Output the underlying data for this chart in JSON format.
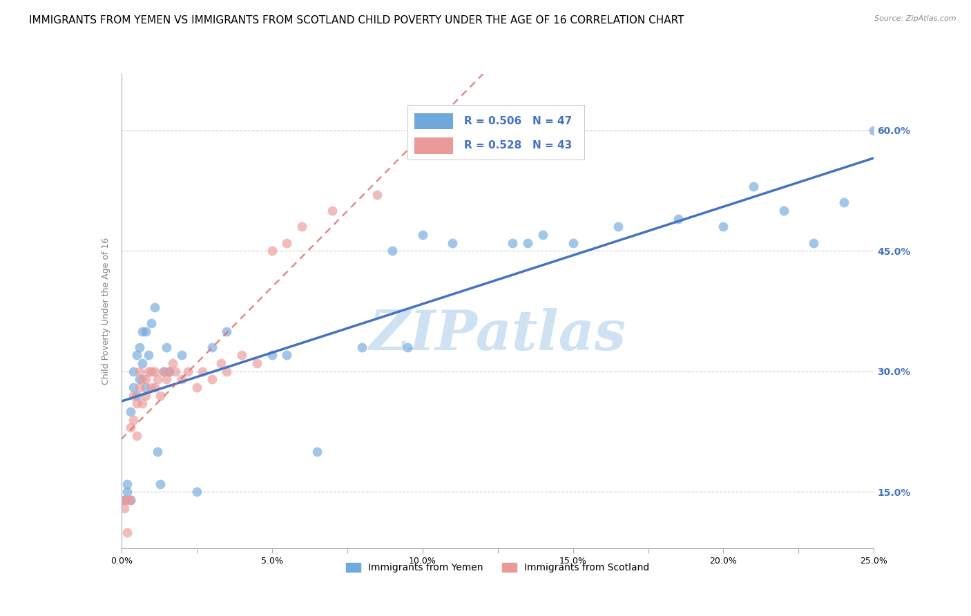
{
  "title": "IMMIGRANTS FROM YEMEN VS IMMIGRANTS FROM SCOTLAND CHILD POVERTY UNDER THE AGE OF 16 CORRELATION CHART",
  "source": "Source: ZipAtlas.com",
  "ylabel": "Child Poverty Under the Age of 16",
  "xlim": [
    0,
    0.25
  ],
  "ylim": [
    0.08,
    0.67
  ],
  "xticks": [
    0.0,
    0.025,
    0.05,
    0.075,
    0.1,
    0.125,
    0.15,
    0.175,
    0.2,
    0.225,
    0.25
  ],
  "yticks": [
    0.15,
    0.3,
    0.45,
    0.6
  ],
  "ytick_labels": [
    "15.0%",
    "30.0%",
    "45.0%",
    "60.0%"
  ],
  "xtick_labels": [
    "0.0%",
    "",
    "5.0%",
    "",
    "10.0%",
    "",
    "15.0%",
    "",
    "20.0%",
    "",
    "25.0%"
  ],
  "legend1_R": "0.506",
  "legend1_N": "47",
  "legend2_R": "0.528",
  "legend2_N": "43",
  "legend1_label": "Immigrants from Yemen",
  "legend2_label": "Immigrants from Scotland",
  "blue_color": "#6fa8dc",
  "pink_color": "#ea9999",
  "line_blue": "#4472c4",
  "line_pink": "#e06c6c",
  "watermark": "ZIPatlas",
  "watermark_color": "#cfe2f3",
  "grid_color": "#cccccc",
  "axis_color": "#aaaaaa",
  "right_ytick_color": "#4472c4",
  "title_fontsize": 11,
  "axis_label_fontsize": 9,
  "tick_fontsize": 9,
  "yemen_x": [
    0.001,
    0.002,
    0.002,
    0.003,
    0.003,
    0.004,
    0.004,
    0.005,
    0.005,
    0.006,
    0.006,
    0.007,
    0.007,
    0.008,
    0.008,
    0.009,
    0.01,
    0.011,
    0.012,
    0.013,
    0.014,
    0.015,
    0.016,
    0.02,
    0.025,
    0.03,
    0.035,
    0.05,
    0.055,
    0.065,
    0.08,
    0.09,
    0.095,
    0.1,
    0.11,
    0.13,
    0.135,
    0.14,
    0.15,
    0.165,
    0.185,
    0.2,
    0.21,
    0.22,
    0.23,
    0.24,
    0.25
  ],
  "yemen_y": [
    0.14,
    0.15,
    0.16,
    0.14,
    0.25,
    0.28,
    0.3,
    0.27,
    0.32,
    0.29,
    0.33,
    0.31,
    0.35,
    0.28,
    0.35,
    0.32,
    0.36,
    0.38,
    0.2,
    0.16,
    0.3,
    0.33,
    0.3,
    0.32,
    0.15,
    0.33,
    0.35,
    0.32,
    0.32,
    0.2,
    0.33,
    0.45,
    0.33,
    0.47,
    0.46,
    0.46,
    0.46,
    0.47,
    0.46,
    0.48,
    0.49,
    0.48,
    0.53,
    0.5,
    0.46,
    0.51,
    0.6
  ],
  "scotland_x": [
    0.001,
    0.001,
    0.002,
    0.002,
    0.003,
    0.003,
    0.004,
    0.004,
    0.005,
    0.005,
    0.006,
    0.006,
    0.007,
    0.007,
    0.008,
    0.008,
    0.009,
    0.01,
    0.01,
    0.011,
    0.011,
    0.012,
    0.013,
    0.014,
    0.015,
    0.016,
    0.017,
    0.018,
    0.02,
    0.022,
    0.025,
    0.027,
    0.03,
    0.033,
    0.035,
    0.04,
    0.045,
    0.05,
    0.055,
    0.06,
    0.07,
    0.085,
    0.11
  ],
  "scotland_y": [
    0.13,
    0.14,
    0.1,
    0.14,
    0.14,
    0.23,
    0.24,
    0.27,
    0.22,
    0.26,
    0.3,
    0.28,
    0.29,
    0.26,
    0.29,
    0.27,
    0.3,
    0.28,
    0.3,
    0.28,
    0.3,
    0.29,
    0.27,
    0.3,
    0.29,
    0.3,
    0.31,
    0.3,
    0.29,
    0.3,
    0.28,
    0.3,
    0.29,
    0.31,
    0.3,
    0.32,
    0.31,
    0.45,
    0.46,
    0.48,
    0.5,
    0.52,
    0.62
  ]
}
